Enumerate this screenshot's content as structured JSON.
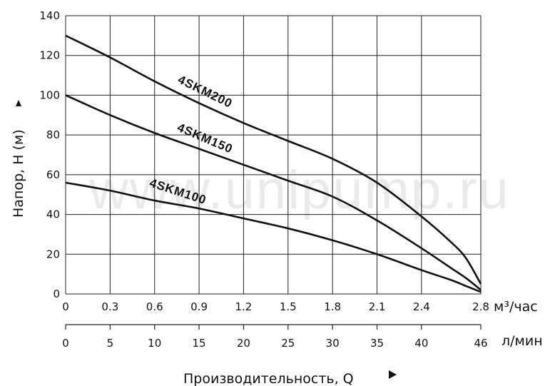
{
  "watermark": "www.unipump.ru",
  "chart_data": {
    "type": "line",
    "ylabel": "Напор, H (м)",
    "xlabel": "Производительность, Q",
    "ylim": [
      0,
      140
    ],
    "yticks": [
      0,
      20,
      40,
      60,
      80,
      100,
      120,
      140
    ],
    "xlim": [
      0,
      2.8
    ],
    "xticks": [
      "0",
      "0.3",
      "0.6",
      "0.9",
      "1.2",
      "1.5",
      "1.8",
      "2.1",
      "2.4",
      "2.8"
    ],
    "xticks_values": [
      0,
      0.3,
      0.6,
      0.9,
      1.2,
      1.5,
      1.8,
      2.1,
      2.4,
      2.8
    ],
    "x_unit": "м³/час",
    "x2ticks": [
      "0",
      "5",
      "10",
      "15",
      "20",
      "25",
      "30",
      "35",
      "40",
      "46"
    ],
    "x2_unit": "л/мин",
    "grid": true,
    "series": [
      {
        "name": "4SKM200",
        "x": [
          0,
          0.3,
          0.6,
          0.9,
          1.2,
          1.5,
          1.8,
          2.1,
          2.4,
          2.6,
          2.7,
          2.8
        ],
        "y": [
          130,
          119,
          107,
          96,
          86,
          77,
          68,
          56,
          39,
          26,
          18,
          5
        ]
      },
      {
        "name": "4SKM150",
        "x": [
          0,
          0.3,
          0.6,
          0.9,
          1.2,
          1.5,
          1.8,
          2.1,
          2.4,
          2.6,
          2.7,
          2.8
        ],
        "y": [
          100,
          90,
          81,
          73,
          65,
          57,
          49,
          37,
          23,
          13,
          8,
          2
        ]
      },
      {
        "name": "4SKM100",
        "x": [
          0,
          0.3,
          0.6,
          0.9,
          1.2,
          1.5,
          1.8,
          2.1,
          2.4,
          2.6,
          2.7,
          2.8
        ],
        "y": [
          56,
          52,
          47,
          43,
          38,
          33,
          27,
          20,
          12,
          7,
          4,
          1
        ]
      }
    ]
  }
}
